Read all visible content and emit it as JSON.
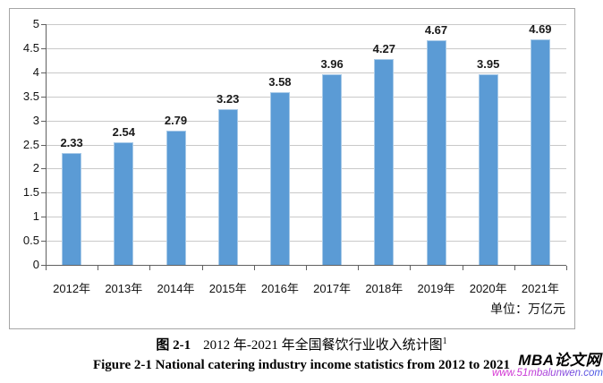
{
  "figure": {
    "caption_zh": {
      "fig_label": "图 2-1",
      "text": "2012 年-2021 年全国餐饮行业收入统计图",
      "footnote_marker": "1"
    },
    "caption_en": "Figure 2-1 National catering industry income statistics from 2012 to 2021"
  },
  "watermark": {
    "brand": "MBA论文网",
    "url": "www.51mbalunwen.com"
  },
  "chart_data": {
    "type": "bar",
    "categories": [
      "2012年",
      "2013年",
      "2014年",
      "2015年",
      "2016年",
      "2017年",
      "2018年",
      "2019年",
      "2020年",
      "2021年"
    ],
    "values": [
      2.33,
      2.54,
      2.79,
      3.23,
      3.58,
      3.96,
      4.27,
      4.67,
      3.95,
      4.69
    ],
    "unit_label": "单位：万亿元",
    "title": "",
    "xlabel": "",
    "ylabel": "",
    "ylim": [
      0,
      5
    ],
    "ytick_step": 0.5,
    "grid": true,
    "legend": "none",
    "value_labels": true,
    "value_label_decimals": 2
  },
  "colors": {
    "bar_fill": "#5b9bd5",
    "bar_border": "#a8cae8",
    "gridline": "#c9c9c9",
    "axis": "#606060",
    "frame_border": "#a6a6a6",
    "text": "#000000",
    "watermark_url_start": "#ef23c9",
    "watermark_url_end": "#3c5ae4"
  }
}
